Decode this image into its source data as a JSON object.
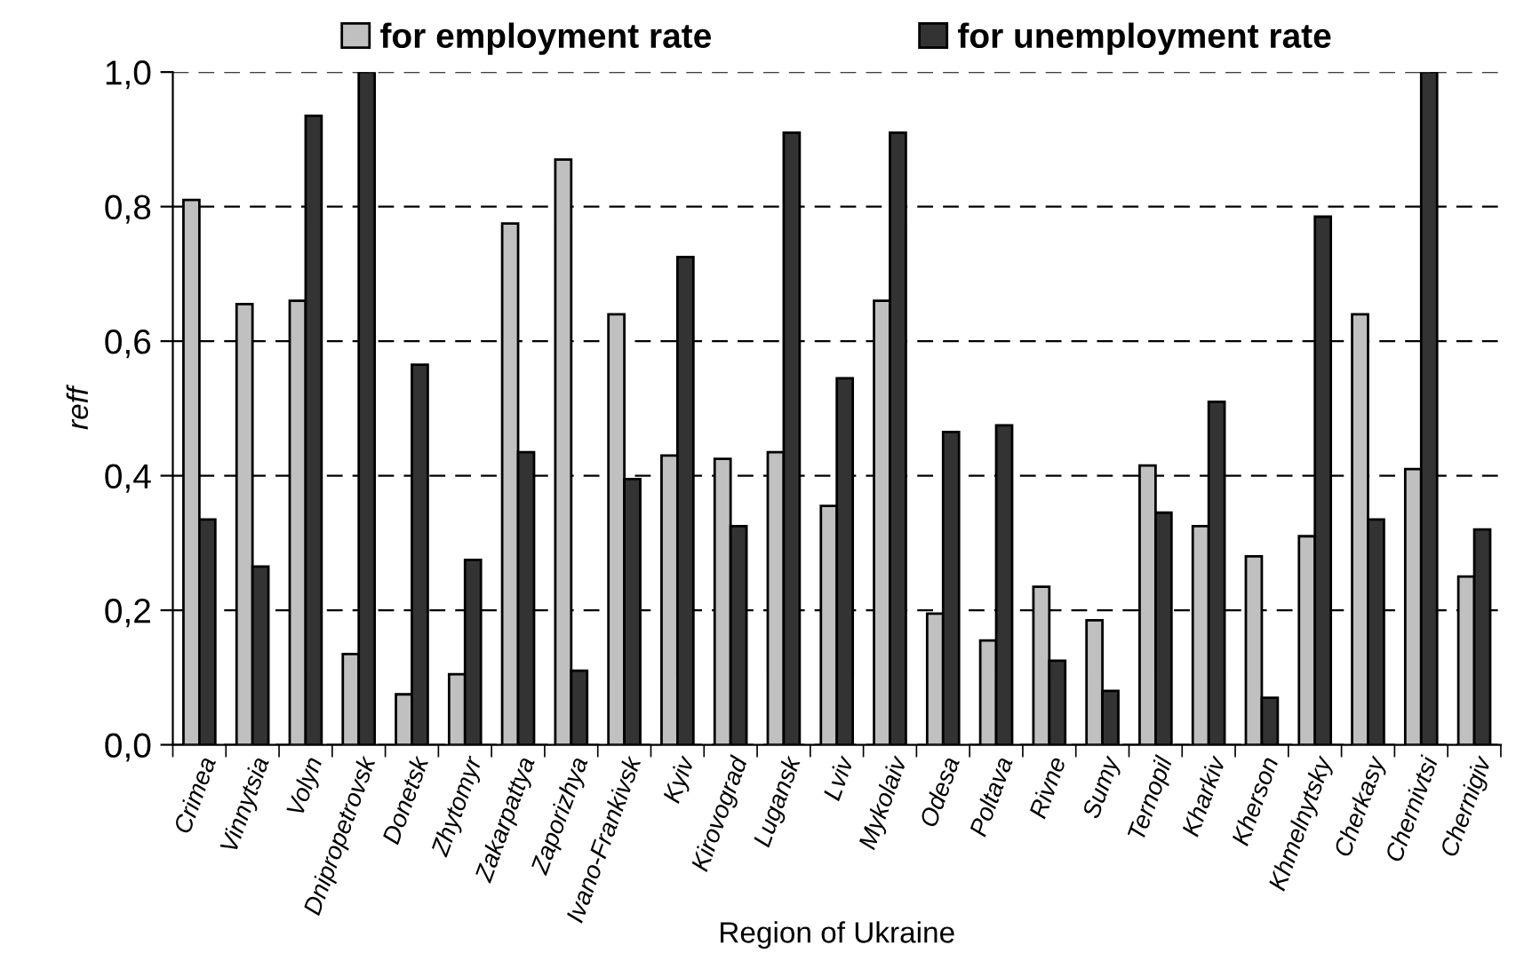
{
  "chart_data": {
    "type": "bar",
    "xlabel": "Region of Ukraine",
    "ylabel": "reff",
    "categories": [
      "Crimea",
      "Vinnytsia",
      "Volyn",
      "Dnipropetrovsk",
      "Donetsk",
      "Zhytomyr",
      "Zakarpattya",
      "Zaporizhya",
      "Ivano-Frankivsk",
      "Kyiv",
      "Kirovograd",
      "Lugansk",
      "Lviv",
      "Mykolaiv",
      "Odesa",
      "Poltava",
      "Rivne",
      "Sumy",
      "Ternopil",
      "Kharkiv",
      "Kherson",
      "Khmelnytsky",
      "Cherkasy",
      "Chernivtsi",
      "Chernigiv"
    ],
    "series": [
      {
        "name": "for employment rate",
        "color": "#c0c0c0",
        "values": [
          0.81,
          0.655,
          0.66,
          0.135,
          0.075,
          0.105,
          0.775,
          0.87,
          0.64,
          0.43,
          0.425,
          0.435,
          0.355,
          0.66,
          0.195,
          0.155,
          0.235,
          0.185,
          0.415,
          0.325,
          0.28,
          0.31,
          0.64,
          0.41,
          0.25
        ]
      },
      {
        "name": "for unemployment rate",
        "color": "#333333",
        "values": [
          0.335,
          0.265,
          0.935,
          1.0,
          0.565,
          0.275,
          0.435,
          0.11,
          0.395,
          0.725,
          0.325,
          0.91,
          0.545,
          0.91,
          0.465,
          0.475,
          0.125,
          0.08,
          0.345,
          0.51,
          0.07,
          0.785,
          0.335,
          1.0,
          0.32
        ]
      }
    ],
    "ylim": [
      0,
      1.0
    ],
    "yticks": [
      {
        "value": 0,
        "label": "0,0"
      },
      {
        "value": 0.2,
        "label": "0,2"
      },
      {
        "value": 0.4,
        "label": "0,4"
      },
      {
        "value": 0.6,
        "label": "0,6"
      },
      {
        "value": 0.8,
        "label": "0,8"
      },
      {
        "value": 1.0,
        "label": "1,0"
      }
    ],
    "grid": "y",
    "legend": "top"
  }
}
